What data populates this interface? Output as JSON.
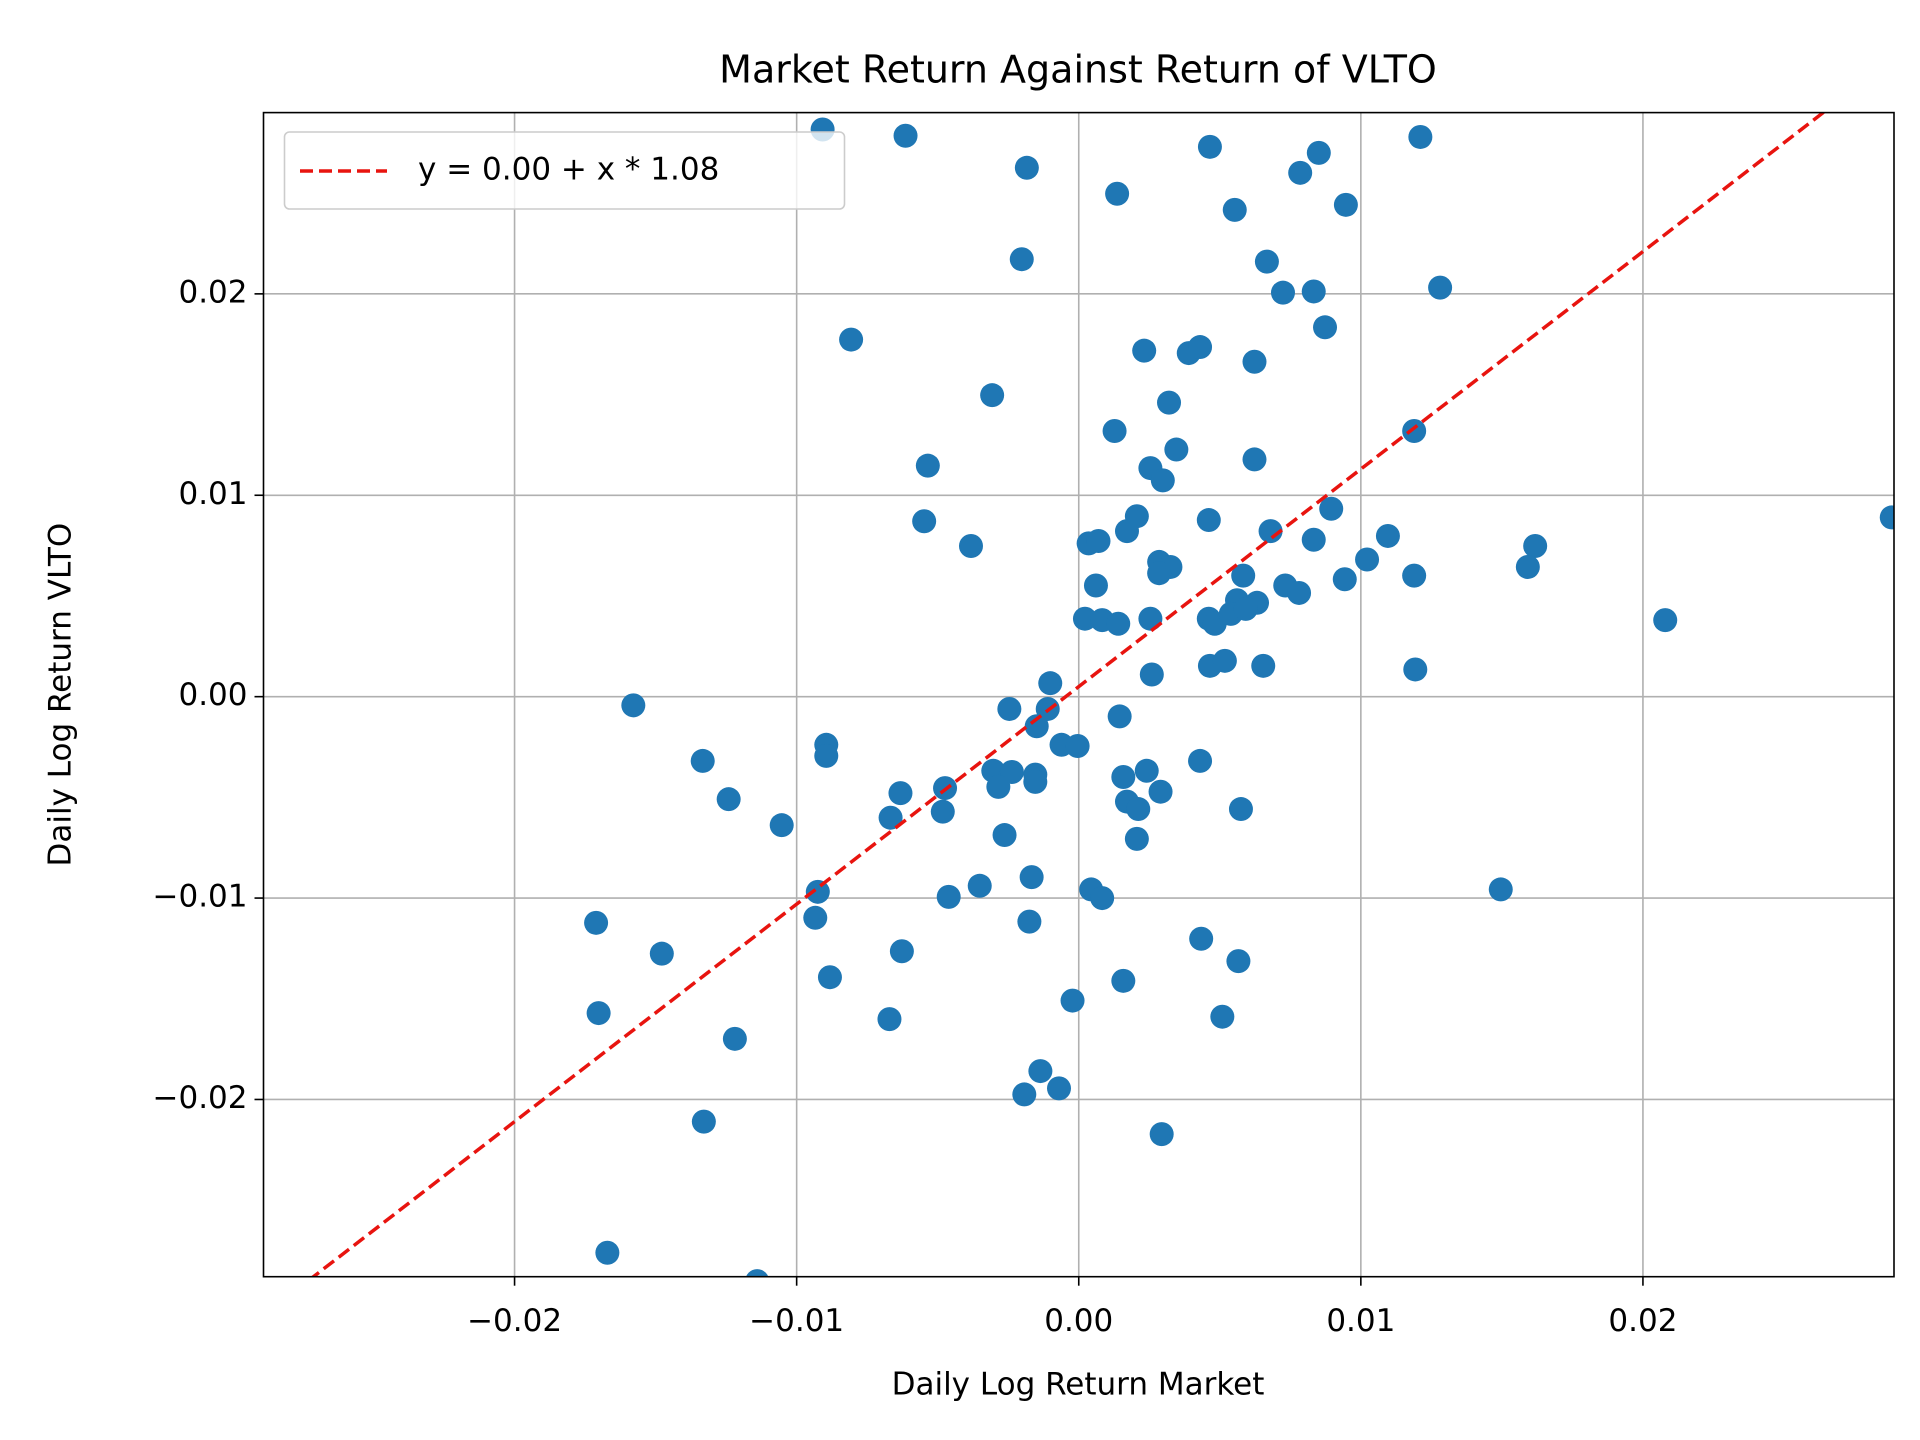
{
  "chart_data": {
    "type": "scatter",
    "title": "Market Return Against Return of VLTO",
    "xlabel": "Daily Log Return Market",
    "ylabel": "Daily Log Return VLTO",
    "color": "#1f77b4",
    "grid": true,
    "legend": "upper left",
    "xlim": [
      -0.0289,
      0.0289
    ],
    "ylim": [
      -0.0288,
      0.029
    ],
    "xticks": [
      {
        "value": -0.02,
        "label": "−0.02"
      },
      {
        "value": -0.01,
        "label": "−0.01"
      },
      {
        "value": 0,
        "label": "0.00"
      },
      0.01,
      0.02
    ],
    "yticks": [
      {
        "value": -0.02,
        "label": "−0.02"
      },
      {
        "value": -0.01,
        "label": "−0.01"
      },
      {
        "value": 0,
        "label": "0.00"
      },
      0.01,
      0.02
    ],
    "fit": {
      "name": "y = 0.00 + x * 1.08",
      "color": "#e8140f",
      "intercept": 0.0005,
      "slope": 1.08
    },
    "x": [
      -0.00908,
      -0.00614,
      -0.00184,
      0.00136,
      0.00465,
      0.00785,
      0.00851,
      0.00553,
      0.00947,
      0.01211,
      -0.00202,
      0.00667,
      0.00724,
      0.00833,
      0.01281,
      0.00873,
      -0.00807,
      0.00232,
      0.0039,
      0.0043,
      0.00623,
      -0.00307,
      0.0032,
      0.00127,
      0.01189,
      0.00346,
      0.00623,
      -0.00535,
      0.00254,
      0.00298,
      -0.00548,
      0.00206,
      0.00461,
      0.00895,
      -0.00382,
      0.00171,
      0.00035,
      0.0007,
      0.0068,
      0.00833,
      0.01096,
      0.01618,
      0.02882,
      0.00285,
      0.00325,
      0.00285,
      0.01022,
      0.01592,
      0.00061,
      0.00583,
      0.00943,
      0.01189,
      0.00732,
      0.00781,
      0.00561,
      0.00632,
      0.00022,
      0.00083,
      0.0014,
      0.00254,
      0.00461,
      0.00482,
      0.00539,
      0.00592,
      0.02079,
      0.00465,
      0.00518,
      0.00654,
      0.00259,
      0.01193,
      -0.00101,
      -0.01579,
      -0.0011,
      -0.00246,
      0.00145,
      -0.00149,
      -0.00061,
      -4e-05,
      -0.00895,
      -0.00895,
      -0.01333,
      0.0043,
      -0.00303,
      -0.00237,
      -0.00154,
      -0.00285,
      -0.00154,
      0.00241,
      0.00158,
      -0.00474,
      -0.00632,
      0.0029,
      -0.01241,
      0.00171,
      0.00211,
      -0.00482,
      0.00575,
      -0.00667,
      -0.01053,
      -0.00263,
      0.00206,
      -0.00167,
      -0.00351,
      -0.00925,
      -0.00461,
      0.00044,
      0.00083,
      0.01496,
      -0.00934,
      -0.00175,
      -0.01711,
      0.00434,
      -0.00627,
      -0.01478,
      0.00566,
      -0.00882,
      0.00158,
      -0.00022,
      -0.01702,
      0.00509,
      -0.00671,
      -0.01219,
      -0.00136,
      -0.00193,
      -0.0007,
      -0.01329,
      0.00294,
      -0.01671,
      -0.0114
    ],
    "values": [
      0.02816,
      0.02785,
      0.02626,
      0.02497,
      0.0273,
      0.02601,
      0.027,
      0.02417,
      0.02442,
      0.02779,
      0.02172,
      0.0216,
      0.02006,
      0.02012,
      0.02031,
      0.01834,
      0.01773,
      0.01718,
      0.01706,
      0.01736,
      0.01663,
      0.01497,
      0.0146,
      0.01319,
      0.01319,
      0.01227,
      0.01178,
      0.01147,
      0.01135,
      0.01074,
      0.00871,
      0.00896,
      0.00877,
      0.00933,
      0.00748,
      0.00822,
      0.00761,
      0.00773,
      0.00822,
      0.00779,
      0.00798,
      0.00748,
      0.0089,
      0.00669,
      0.00644,
      0.00613,
      0.00681,
      0.00644,
      0.00552,
      0.00601,
      0.00583,
      0.00601,
      0.00552,
      0.00515,
      0.00479,
      0.00466,
      0.00387,
      0.0038,
      0.00362,
      0.00387,
      0.00387,
      0.00362,
      0.00411,
      0.00436,
      0.0038,
      0.00153,
      0.00178,
      0.00153,
      0.0011,
      0.00135,
      0.00067,
      -0.00043,
      -0.00061,
      -0.00061,
      -0.00098,
      -0.00147,
      -0.00239,
      -0.00245,
      -0.00239,
      -0.00294,
      -0.00319,
      -0.00319,
      -0.00368,
      -0.00374,
      -0.00387,
      -0.00448,
      -0.00423,
      -0.00368,
      -0.00399,
      -0.00454,
      -0.00479,
      -0.00472,
      -0.00509,
      -0.00521,
      -0.00558,
      -0.00571,
      -0.00558,
      -0.00601,
      -0.00638,
      -0.00687,
      -0.00706,
      -0.00896,
      -0.00939,
      -0.00969,
      -0.00994,
      -0.00957,
      -0.01,
      -0.00957,
      -0.01098,
      -0.01117,
      -0.01123,
      -0.01202,
      -0.01264,
      -0.01276,
      -0.01313,
      -0.01393,
      -0.01411,
      -0.01509,
      -0.01571,
      -0.01589,
      -0.01601,
      -0.01699,
      -0.01859,
      -0.01975,
      -0.01945,
      -0.0211,
      -0.02172,
      -0.02761,
      -0.02902
    ]
  }
}
